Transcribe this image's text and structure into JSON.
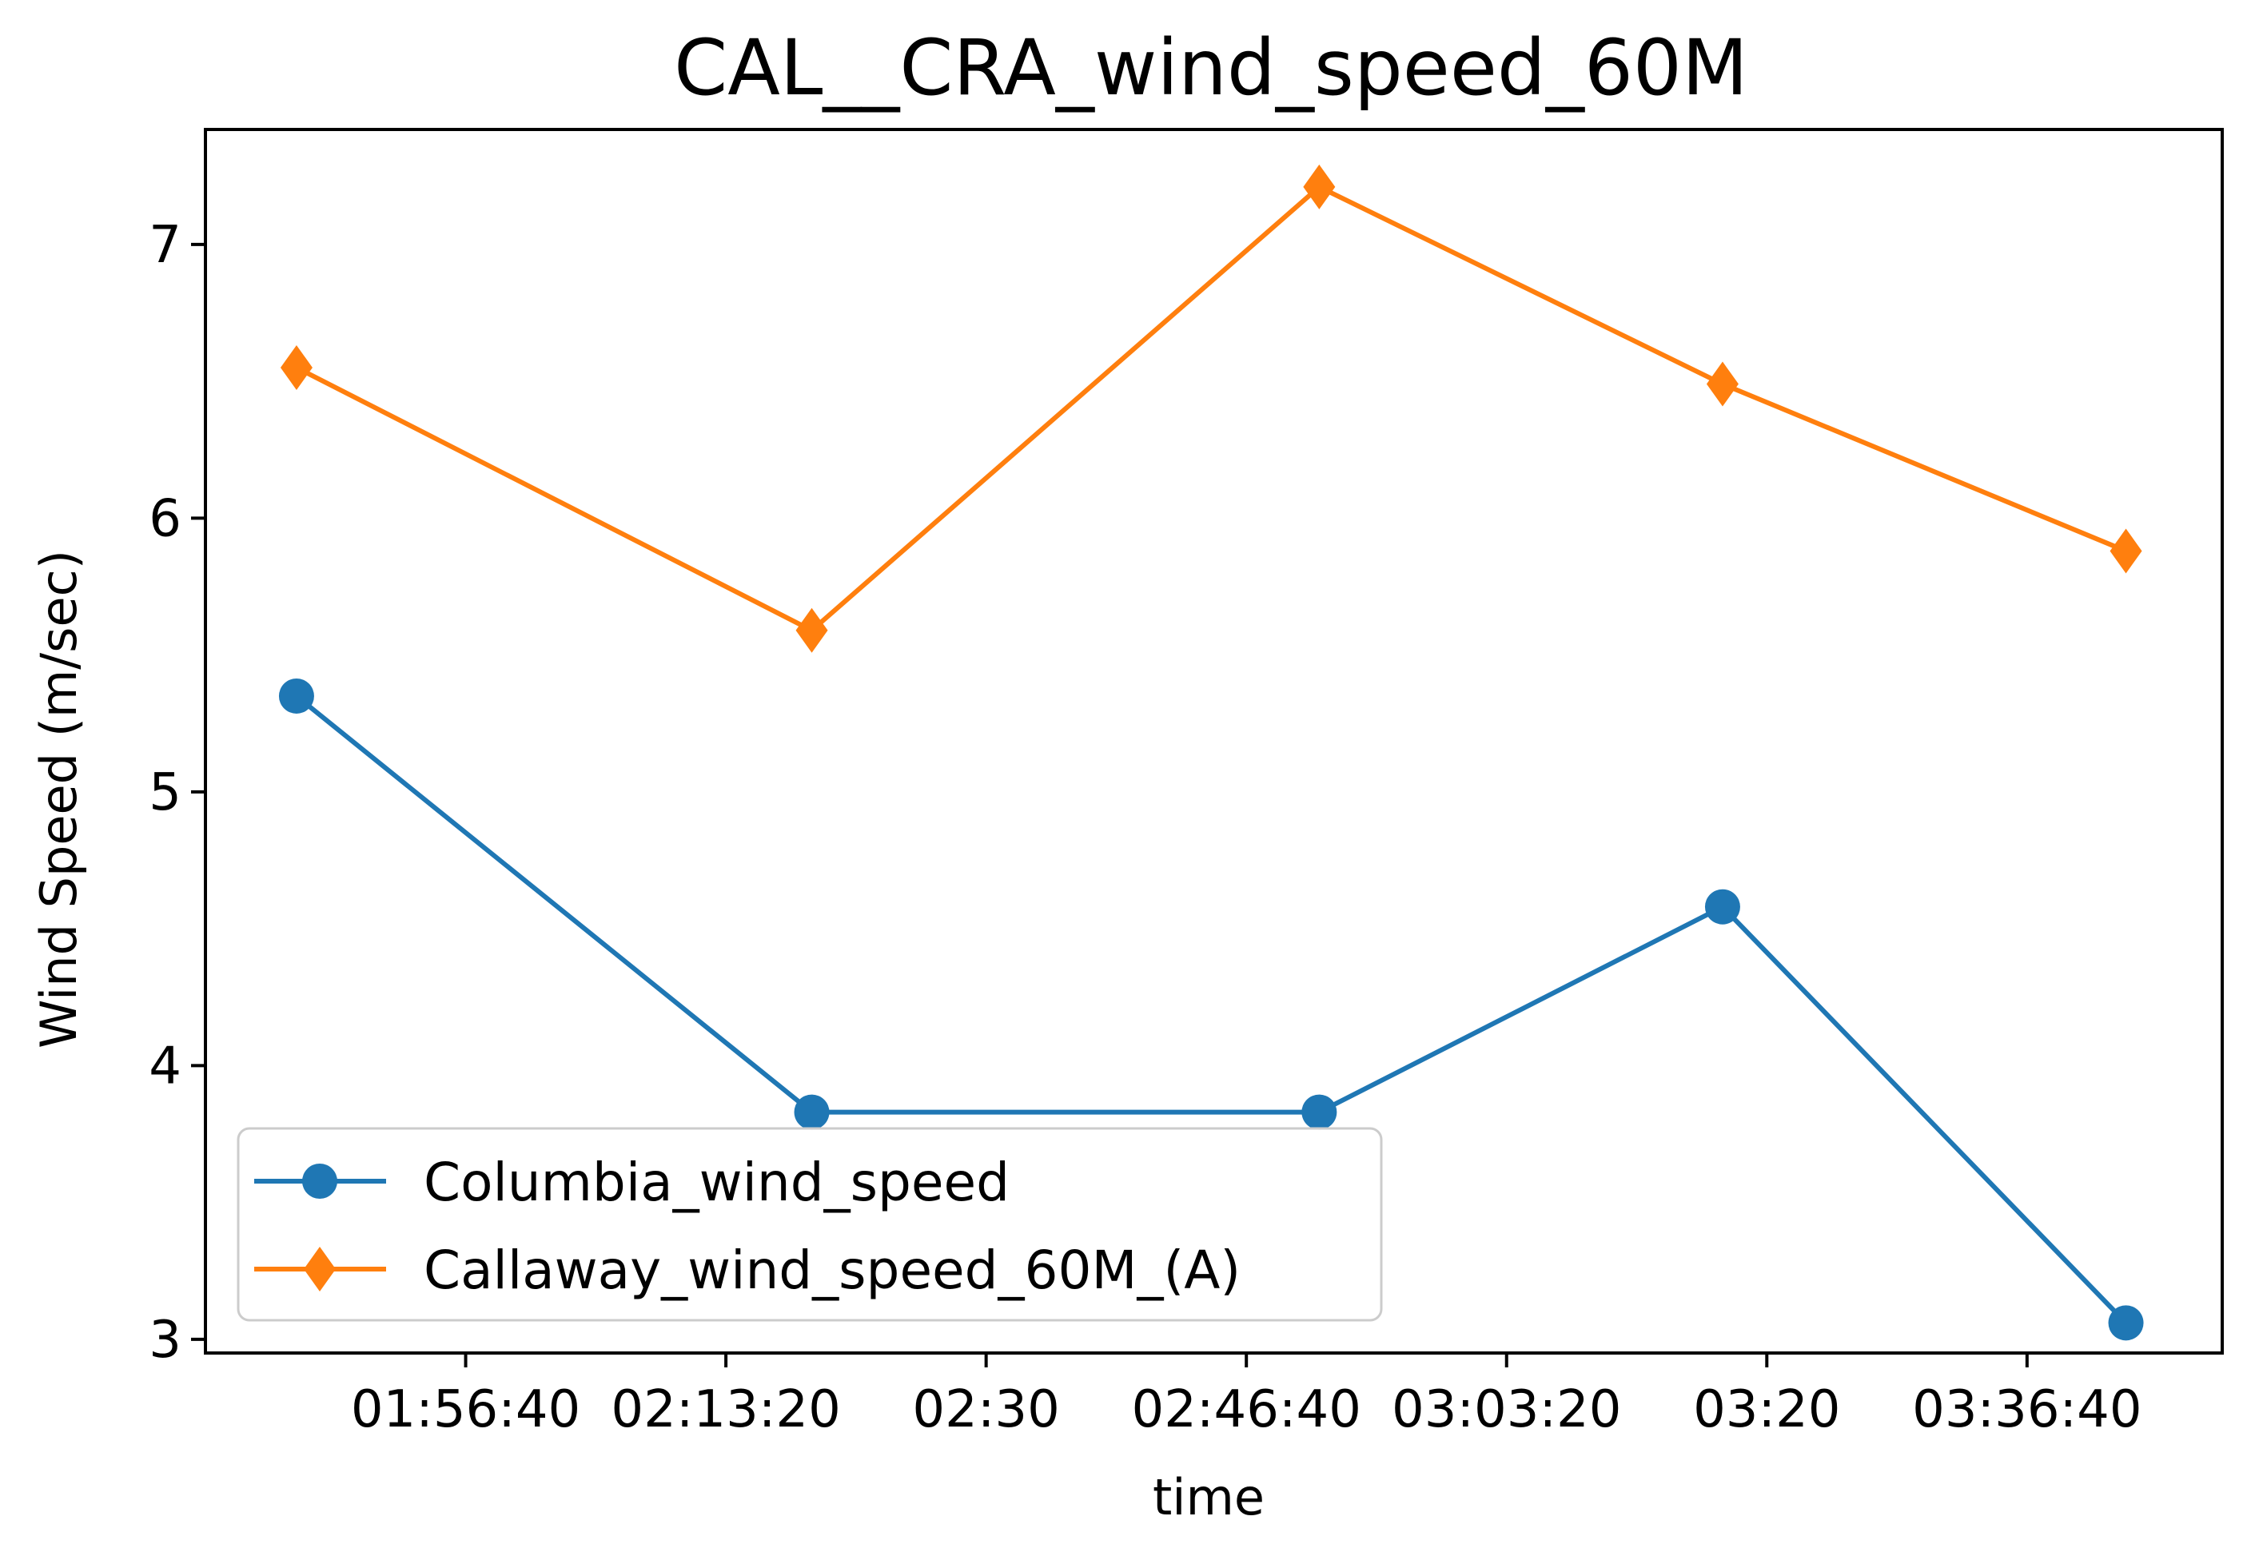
{
  "chart_data": {
    "type": "line",
    "title": "CAL__CRA_wind_speed_60M",
    "xlabel": "time",
    "ylabel": "Wind Speed (m/sec)",
    "x_tick_labels": [
      "01:56:40",
      "02:13:20",
      "02:30",
      "02:46:40",
      "03:03:20",
      "03:20",
      "03:36:40"
    ],
    "x_tick_seconds": [
      7000,
      8000,
      9000,
      10000,
      11000,
      12000,
      13000
    ],
    "xlim_seconds": [
      6000,
      13750
    ],
    "y_ticks": [
      3,
      4,
      5,
      6,
      7
    ],
    "ylim": [
      2.95,
      7.42
    ],
    "grid": false,
    "legend_position": "lower-left",
    "series": [
      {
        "name": "Columbia_wind_speed",
        "color": "#1f77b4",
        "marker": "circle",
        "x_seconds": [
          6350,
          8330,
          10280,
          11830,
          13380
        ],
        "values": [
          5.35,
          3.83,
          3.83,
          4.58,
          3.06
        ]
      },
      {
        "name": "Callaway_wind_speed_60M_(A)",
        "color": "#ff7f0e",
        "marker": "diamond",
        "x_seconds": [
          6350,
          8330,
          10280,
          11830,
          13380
        ],
        "values": [
          6.55,
          5.59,
          7.21,
          6.49,
          5.88
        ]
      }
    ]
  }
}
